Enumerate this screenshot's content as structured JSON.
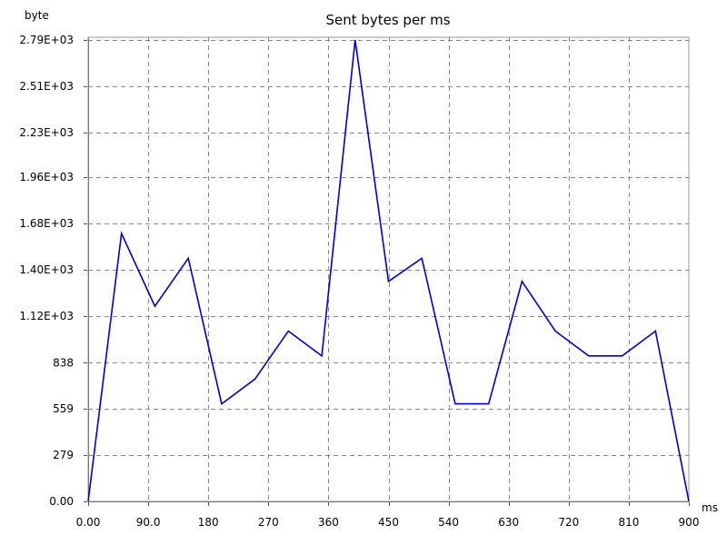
{
  "chart_data": {
    "type": "line",
    "title": "Sent bytes per ms",
    "xlabel": "ms",
    "ylabel": "byte",
    "xlim": [
      0,
      900
    ],
    "ylim": [
      0,
      2790
    ],
    "x_ticks": [
      "0.00",
      "90.0",
      "180",
      "270",
      "360",
      "450",
      "540",
      "630",
      "720",
      "810",
      "900"
    ],
    "x_tick_values": [
      0,
      90,
      180,
      270,
      360,
      450,
      540,
      630,
      720,
      810,
      900
    ],
    "y_ticks": [
      "0.00",
      "279",
      "559",
      "838",
      "1.12E+03",
      "1.40E+03",
      "1.68E+03",
      "1.96E+03",
      "2.23E+03",
      "2.51E+03",
      "2.79E+03"
    ],
    "y_tick_values": [
      0,
      279,
      559,
      838,
      1120,
      1400,
      1680,
      1960,
      2230,
      2510,
      2790
    ],
    "grid": true,
    "series": [
      {
        "color": "#0000cc",
        "x": [
          0,
          50,
          100,
          150,
          200,
          250,
          300,
          350,
          400,
          450,
          500,
          550,
          600,
          650,
          700,
          750,
          800,
          850,
          900
        ],
        "y": [
          0,
          1620,
          1180,
          1470,
          590,
          740,
          1030,
          880,
          2790,
          1330,
          1470,
          590,
          590,
          1330,
          1030,
          880,
          880,
          1030,
          0
        ]
      }
    ]
  }
}
